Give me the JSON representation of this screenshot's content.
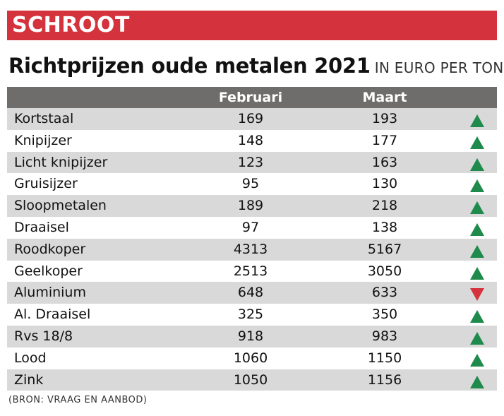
{
  "header": {
    "category": "SCHROOT"
  },
  "title": {
    "main": "Richtprijzen oude metalen 2021",
    "unit": "IN EURO PER TON"
  },
  "colors": {
    "banner": "#d4333d",
    "header_bg": "#6e6d6c",
    "row_shade": "#d9d9d9",
    "up": "#1e8a4c",
    "down": "#d4333d"
  },
  "chart_data": {
    "type": "table",
    "columns": [
      "",
      "Februari",
      "Maart",
      ""
    ],
    "rows": [
      {
        "name": "Kortstaal",
        "februari": "169",
        "maart": "193",
        "trend": "up"
      },
      {
        "name": "Knipijzer",
        "februari": "148",
        "maart": "177",
        "trend": "up"
      },
      {
        "name": "Licht knipijzer",
        "februari": "123",
        "maart": "163",
        "trend": "up"
      },
      {
        "name": "Gruisijzer",
        "februari": "95",
        "maart": "130",
        "trend": "up"
      },
      {
        "name": "Sloopmetalen",
        "februari": "189",
        "maart": "218",
        "trend": "up"
      },
      {
        "name": "Draaisel",
        "februari": "97",
        "maart": "138",
        "trend": "up"
      },
      {
        "name": "Roodkoper",
        "februari": "4313",
        "maart": "5167",
        "trend": "up"
      },
      {
        "name": "Geelkoper",
        "februari": "2513",
        "maart": "3050",
        "trend": "up"
      },
      {
        "name": "Aluminium",
        "februari": "648",
        "maart": "633",
        "trend": "down"
      },
      {
        "name": "Al. Draaisel",
        "februari": "325",
        "maart": "350",
        "trend": "up"
      },
      {
        "name": "Rvs 18/8",
        "februari": "918",
        "maart": "983",
        "trend": "up"
      },
      {
        "name": "Lood",
        "februari": "1060",
        "maart": "1150",
        "trend": "up"
      },
      {
        "name": "Zink",
        "februari": "1050",
        "maart": "1156",
        "trend": "up"
      }
    ]
  },
  "source": "(BRON: VRAAG EN AANBOD)"
}
